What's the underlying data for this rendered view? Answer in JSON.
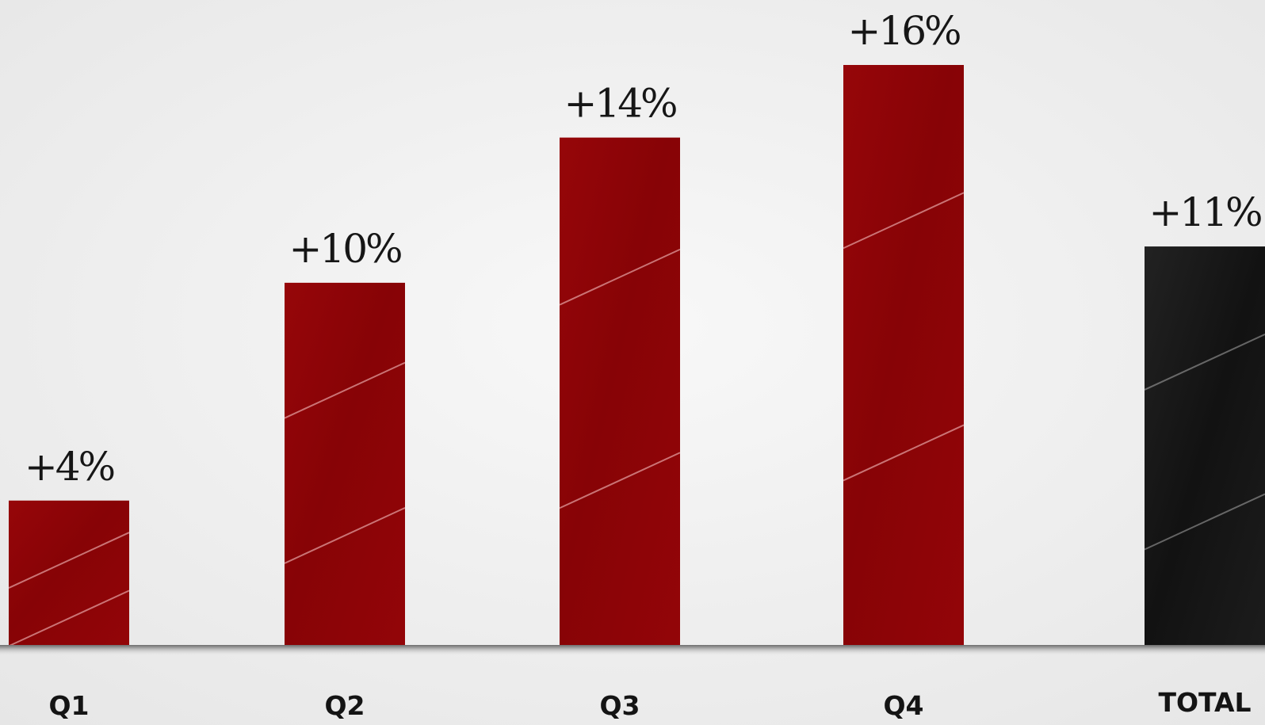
{
  "chart_data": {
    "type": "bar",
    "categories": [
      "Q1",
      "Q2",
      "Q3",
      "Q4",
      "TOTAL"
    ],
    "values": [
      4,
      10,
      14,
      16,
      11
    ],
    "data_labels": [
      "+4%",
      "+10%",
      "+14%",
      "+16%",
      "+11%"
    ],
    "title": "",
    "xlabel": "",
    "ylabel": "",
    "ylim": [
      0,
      16
    ],
    "grid": false,
    "legend": "none",
    "colors": {
      "quarter_bar": "#8b0407",
      "total_bar": "#151515",
      "background": "#f1f1f1"
    }
  }
}
